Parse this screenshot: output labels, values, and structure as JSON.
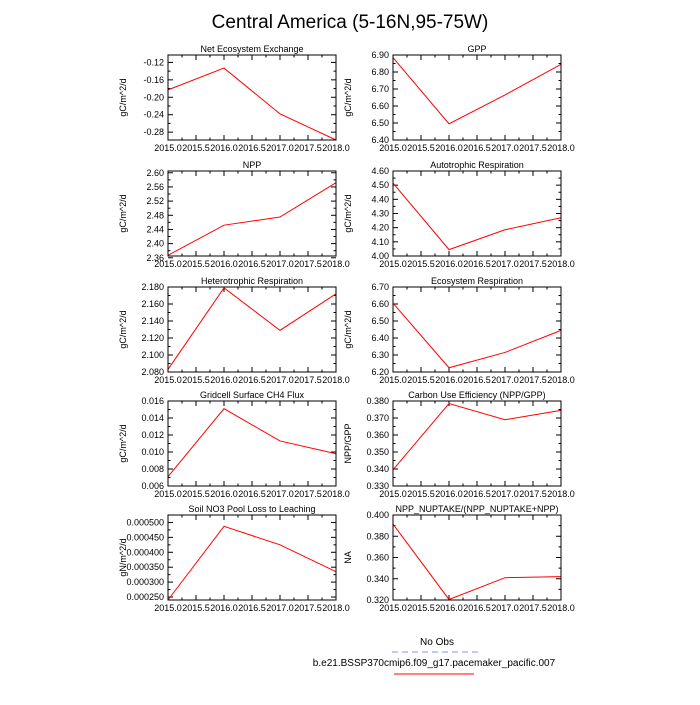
{
  "figure": {
    "title": "Central America (5-16N,95-75W)",
    "legend": {
      "obs_label": "No Obs",
      "obs_color": "#8c8cff",
      "model_label": "b.e21.BSSP370cmip6.f09_g17.pacemaker_pacific.007",
      "model_color": "#ff0000"
    }
  },
  "chart_data": [
    {
      "type": "line",
      "title": "Net Ecosystem Exchange",
      "ylabel": "gC/m^2/d",
      "x": [
        2015.0,
        2016.0,
        2017.0,
        2018.0
      ],
      "values": [
        -0.183,
        -0.133,
        -0.238,
        -0.298
      ],
      "xlim": [
        2015.0,
        2018.0
      ],
      "ylim": [
        -0.298,
        -0.103
      ],
      "yticks": [
        -0.12,
        -0.16,
        -0.2,
        -0.24,
        -0.28
      ],
      "ytick_labels": [
        "-0.12",
        "-0.16",
        "-0.20",
        "-0.24",
        "-0.28"
      ],
      "xtick_labels": [
        "2015.0",
        "2015.5",
        "2016.0",
        "2016.5",
        "2017.0",
        "2017.5",
        "2018.0"
      ]
    },
    {
      "type": "line",
      "title": "GPP",
      "ylabel": "gC/m^2/d",
      "x": [
        2015.0,
        2016.0,
        2017.0,
        2018.0
      ],
      "values": [
        6.885,
        6.495,
        6.665,
        6.845
      ],
      "xlim": [
        2015.0,
        2018.0
      ],
      "ylim": [
        6.4,
        6.9
      ],
      "yticks": [
        6.4,
        6.5,
        6.6,
        6.7,
        6.8,
        6.9
      ],
      "ytick_labels": [
        "6.40",
        "6.50",
        "6.60",
        "6.70",
        "6.80",
        "6.90"
      ],
      "xtick_labels": [
        "2015.0",
        "2015.5",
        "2016.0",
        "2016.5",
        "2017.0",
        "2017.5",
        "2018.0"
      ]
    },
    {
      "type": "line",
      "title": "NPP",
      "ylabel": "gC/m^2/d",
      "x": [
        2015.0,
        2016.0,
        2017.0,
        2018.0
      ],
      "values": [
        2.367,
        2.452,
        2.475,
        2.572
      ],
      "xlim": [
        2015.0,
        2018.0
      ],
      "ylim": [
        2.365,
        2.605
      ],
      "yticks": [
        2.36,
        2.4,
        2.44,
        2.48,
        2.52,
        2.56,
        2.6
      ],
      "ytick_labels": [
        "2.36",
        "2.40",
        "2.44",
        "2.48",
        "2.52",
        "2.56",
        "2.60"
      ],
      "xtick_labels": [
        "2015.0",
        "2015.5",
        "2016.0",
        "2016.5",
        "2017.0",
        "2017.5",
        "2018.0"
      ]
    },
    {
      "type": "line",
      "title": "Autotrophic Respiration",
      "ylabel": "gC/m^2/d",
      "x": [
        2015.0,
        2016.0,
        2017.0,
        2018.0
      ],
      "values": [
        4.515,
        4.045,
        4.185,
        4.27
      ],
      "xlim": [
        2015.0,
        2018.0
      ],
      "ylim": [
        4.0,
        4.6
      ],
      "yticks": [
        4.0,
        4.1,
        4.2,
        4.3,
        4.4,
        4.5,
        4.6
      ],
      "ytick_labels": [
        "4.00",
        "4.10",
        "4.20",
        "4.30",
        "4.40",
        "4.50",
        "4.60"
      ],
      "xtick_labels": [
        "2015.0",
        "2015.5",
        "2016.0",
        "2016.5",
        "2017.0",
        "2017.5",
        "2018.0"
      ]
    },
    {
      "type": "line",
      "title": "Heterotrophic Respiration",
      "ylabel": "gC/m^2/d",
      "x": [
        2015.0,
        2016.0,
        2017.0,
        2018.0
      ],
      "values": [
        2.083,
        2.179,
        2.129,
        2.172
      ],
      "xlim": [
        2015.0,
        2018.0
      ],
      "ylim": [
        2.08,
        2.18
      ],
      "yticks": [
        2.08,
        2.1,
        2.12,
        2.14,
        2.16,
        2.18
      ],
      "ytick_labels": [
        "2.080",
        "2.100",
        "2.120",
        "2.140",
        "2.160",
        "2.180"
      ],
      "xtick_labels": [
        "2015.0",
        "2015.5",
        "2016.0",
        "2016.5",
        "2017.0",
        "2017.5",
        "2018.0"
      ]
    },
    {
      "type": "line",
      "title": "Ecosystem Respiration",
      "ylabel": "gC/m^2/d",
      "x": [
        2015.0,
        2016.0,
        2017.0,
        2018.0
      ],
      "values": [
        6.605,
        6.225,
        6.315,
        6.445
      ],
      "xlim": [
        2015.0,
        2018.0
      ],
      "ylim": [
        6.2,
        6.7
      ],
      "yticks": [
        6.2,
        6.3,
        6.4,
        6.5,
        6.6,
        6.7
      ],
      "ytick_labels": [
        "6.20",
        "6.30",
        "6.40",
        "6.50",
        "6.60",
        "6.70"
      ],
      "xtick_labels": [
        "2015.0",
        "2015.5",
        "2016.0",
        "2016.5",
        "2017.0",
        "2017.5",
        "2018.0"
      ]
    },
    {
      "type": "line",
      "title": "Gridcell Surface CH4 Flux",
      "ylabel": "gC/m^2/d",
      "x": [
        2015.0,
        2016.0,
        2017.0,
        2018.0
      ],
      "values": [
        0.0071,
        0.0151,
        0.0113,
        0.0098
      ],
      "xlim": [
        2015.0,
        2018.0
      ],
      "ylim": [
        0.006,
        0.016
      ],
      "yticks": [
        0.006,
        0.008,
        0.01,
        0.012,
        0.014,
        0.016
      ],
      "ytick_labels": [
        "0.006",
        "0.008",
        "0.010",
        "0.012",
        "0.014",
        "0.016"
      ],
      "xtick_labels": [
        "2015.0",
        "2015.5",
        "2016.0",
        "2016.5",
        "2017.0",
        "2017.5",
        "2018.0"
      ]
    },
    {
      "type": "line",
      "title": "Carbon Use Efficiency (NPP/GPP)",
      "ylabel": "NPP/GPP",
      "x": [
        2015.0,
        2016.0,
        2017.0,
        2018.0
      ],
      "values": [
        0.3395,
        0.3785,
        0.369,
        0.3745
      ],
      "xlim": [
        2015.0,
        2018.0
      ],
      "ylim": [
        0.33,
        0.38
      ],
      "yticks": [
        0.33,
        0.34,
        0.35,
        0.36,
        0.37,
        0.38
      ],
      "ytick_labels": [
        "0.330",
        "0.340",
        "0.350",
        "0.360",
        "0.370",
        "0.380"
      ],
      "xtick_labels": [
        "2015.0",
        "2015.5",
        "2016.0",
        "2016.5",
        "2017.0",
        "2017.5",
        "2018.0"
      ]
    },
    {
      "type": "line",
      "title": "Soil NO3 Pool Loss to Leaching",
      "ylabel": "gN/m^2/d",
      "x": [
        2015.0,
        2016.0,
        2017.0,
        2018.0
      ],
      "values": [
        0.00024,
        0.000487,
        0.000425,
        0.000335
      ],
      "xlim": [
        2015.0,
        2018.0
      ],
      "ylim": [
        0.00024,
        0.000525
      ],
      "yticks": [
        0.00025,
        0.0003,
        0.00035,
        0.0004,
        0.00045,
        0.0005
      ],
      "ytick_labels": [
        "0.000250",
        "0.000300",
        "0.000350",
        "0.000400",
        "0.000450",
        "0.000500"
      ],
      "xtick_labels": [
        "2015.0",
        "2015.5",
        "2016.0",
        "2016.5",
        "2017.0",
        "2017.5",
        "2018.0"
      ]
    },
    {
      "type": "line",
      "title": "NPP_NUPTAKE/(NPP_NUPTAKE+NPP)",
      "ylabel": "NA",
      "x": [
        2015.0,
        2016.0,
        2017.0,
        2018.0
      ],
      "values": [
        0.3915,
        0.3205,
        0.341,
        0.342
      ],
      "xlim": [
        2015.0,
        2018.0
      ],
      "ylim": [
        0.32,
        0.4
      ],
      "yticks": [
        0.32,
        0.34,
        0.36,
        0.38,
        0.4
      ],
      "ytick_labels": [
        "0.320",
        "0.340",
        "0.360",
        "0.380",
        "0.400"
      ],
      "xtick_labels": [
        "2015.0",
        "2015.5",
        "2016.0",
        "2016.5",
        "2017.0",
        "2017.5",
        "2018.0"
      ]
    }
  ]
}
